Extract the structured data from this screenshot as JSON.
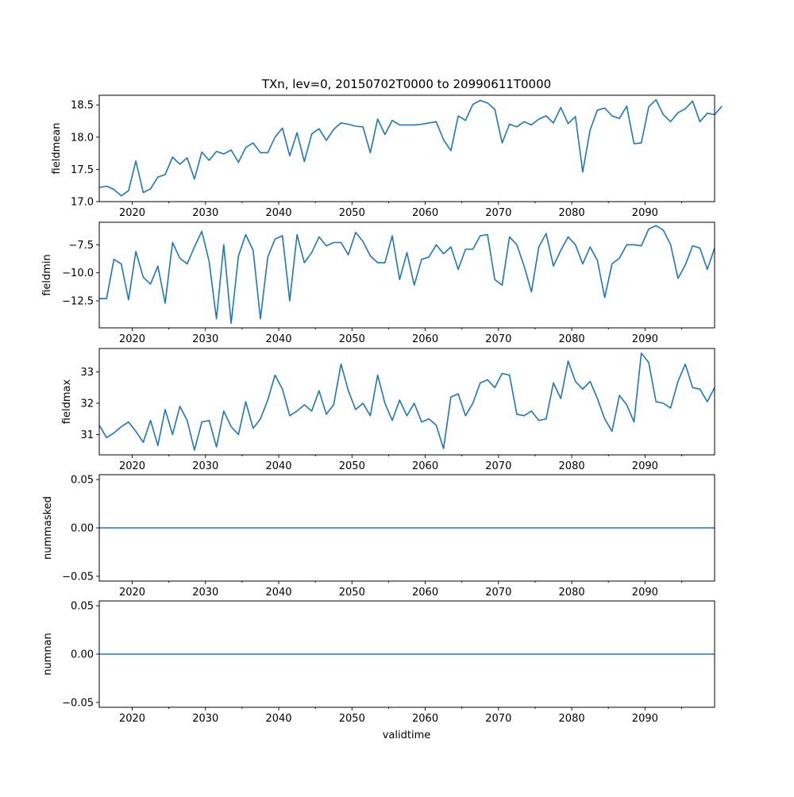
{
  "figure": {
    "title": "TXn, lev=0, 20150702T0000 to 20990611T0000",
    "xlabel": "validtime"
  },
  "chart_data": [
    {
      "type": "line",
      "ylabel": "fieldmean",
      "xlim": [
        2015.5,
        2099.5
      ],
      "ylim": [
        17.0,
        18.65
      ],
      "x_ticks": [
        2020,
        2030,
        2040,
        2050,
        2060,
        2070,
        2080,
        2090
      ],
      "x_tick_labels": [
        "2020",
        "2030",
        "2040",
        "2050",
        "2060",
        "2070",
        "2080",
        "2090"
      ],
      "y_ticks": [
        17.0,
        17.5,
        18.0,
        18.5
      ],
      "y_tick_labels": [
        "17.0",
        "17.5",
        "18.0",
        "18.5"
      ],
      "x_start": 2015.5,
      "values": [
        17.22,
        17.24,
        17.19,
        17.09,
        17.17,
        17.63,
        17.14,
        17.2,
        17.38,
        17.42,
        17.69,
        17.58,
        17.68,
        17.35,
        17.77,
        17.64,
        17.78,
        17.74,
        17.8,
        17.61,
        17.84,
        17.91,
        17.76,
        17.76,
        18.0,
        18.14,
        17.71,
        18.07,
        17.62,
        18.05,
        18.13,
        17.95,
        18.12,
        18.22,
        18.2,
        18.17,
        18.16,
        17.76,
        18.28,
        18.04,
        18.26,
        18.19,
        18.19,
        18.19,
        18.2,
        18.22,
        18.24,
        17.96,
        17.79,
        18.33,
        18.26,
        18.51,
        18.57,
        18.53,
        18.43,
        17.91,
        18.2,
        18.16,
        18.24,
        18.19,
        18.28,
        18.33,
        18.22,
        18.46,
        18.21,
        18.32,
        17.46,
        18.11,
        18.42,
        18.45,
        18.33,
        18.29,
        18.48,
        17.9,
        17.91,
        18.47,
        18.58,
        18.35,
        18.24,
        18.38,
        18.44,
        18.56,
        18.24,
        18.37,
        18.35,
        18.48
      ]
    },
    {
      "type": "line",
      "ylabel": "fieldmin",
      "xlim": [
        2015.5,
        2099.5
      ],
      "ylim": [
        -14.9,
        -5.5
      ],
      "x_ticks": [
        2020,
        2030,
        2040,
        2050,
        2060,
        2070,
        2080,
        2090
      ],
      "x_tick_labels": [
        "2020",
        "2030",
        "2040",
        "2050",
        "2060",
        "2070",
        "2080",
        "2090"
      ],
      "y_ticks": [
        -12.5,
        -10.0,
        -7.5
      ],
      "y_tick_labels": [
        "−12.5",
        "−10.0",
        "−7.5"
      ],
      "x_start": 2015.5,
      "values": [
        -12.3,
        -12.3,
        -8.8,
        -9.2,
        -12.4,
        -8.1,
        -10.4,
        -11.0,
        -9.4,
        -12.7,
        -7.3,
        -8.7,
        -9.2,
        -7.7,
        -6.3,
        -9.0,
        -14.1,
        -7.5,
        -14.5,
        -8.5,
        -6.6,
        -8.0,
        -14.1,
        -8.6,
        -7.0,
        -6.7,
        -12.5,
        -6.6,
        -9.1,
        -8.2,
        -6.8,
        -7.6,
        -7.3,
        -7.3,
        -8.4,
        -6.4,
        -7.2,
        -8.5,
        -9.1,
        -9.1,
        -6.7,
        -10.6,
        -8.2,
        -11.1,
        -8.8,
        -8.6,
        -7.5,
        -8.3,
        -7.7,
        -9.7,
        -7.9,
        -7.9,
        -6.7,
        -6.6,
        -10.6,
        -11.1,
        -6.8,
        -7.5,
        -9.4,
        -11.7,
        -7.7,
        -6.5,
        -9.4,
        -8.0,
        -6.8,
        -7.5,
        -9.2,
        -7.7,
        -8.9,
        -12.2,
        -9.2,
        -8.7,
        -7.5,
        -7.5,
        -7.6,
        -6.1,
        -5.8,
        -6.2,
        -7.5,
        -10.5,
        -9.3,
        -7.6,
        -7.8,
        -9.7,
        -7.8
      ]
    },
    {
      "type": "line",
      "ylabel": "fieldmax",
      "xlim": [
        2015.5,
        2099.5
      ],
      "ylim": [
        30.35,
        33.75
      ],
      "x_ticks": [
        2020,
        2030,
        2040,
        2050,
        2060,
        2070,
        2080,
        2090
      ],
      "x_tick_labels": [
        "2020",
        "2030",
        "2040",
        "2050",
        "2060",
        "2070",
        "2080",
        "2090"
      ],
      "y_ticks": [
        31,
        32,
        33
      ],
      "y_tick_labels": [
        "31",
        "32",
        "33"
      ],
      "x_start": 2015.5,
      "values": [
        31.3,
        30.9,
        31.05,
        31.25,
        31.4,
        31.1,
        30.75,
        31.45,
        30.65,
        31.8,
        31.0,
        31.9,
        31.45,
        30.5,
        31.4,
        31.45,
        30.6,
        31.75,
        31.25,
        31.0,
        32.05,
        31.2,
        31.5,
        32.1,
        32.9,
        32.45,
        31.6,
        31.75,
        31.95,
        31.75,
        32.4,
        31.65,
        31.95,
        33.25,
        32.4,
        31.8,
        32.0,
        31.6,
        32.9,
        32.0,
        31.45,
        32.1,
        31.6,
        32.0,
        31.4,
        31.5,
        31.3,
        30.55,
        32.2,
        32.3,
        31.6,
        32.0,
        32.65,
        32.75,
        32.5,
        32.95,
        32.9,
        31.65,
        31.6,
        31.75,
        31.45,
        31.5,
        32.65,
        32.15,
        33.35,
        32.7,
        32.45,
        32.7,
        32.15,
        31.5,
        31.1,
        32.25,
        31.95,
        31.4,
        33.6,
        33.3,
        32.05,
        32.0,
        31.85,
        32.7,
        33.25,
        32.5,
        32.45,
        32.05,
        32.5
      ]
    },
    {
      "type": "line",
      "ylabel": "nummasked",
      "xlim": [
        2015.5,
        2099.5
      ],
      "ylim": [
        -0.055,
        0.055
      ],
      "x_ticks": [
        2020,
        2030,
        2040,
        2050,
        2060,
        2070,
        2080,
        2090
      ],
      "x_tick_labels": [
        "2020",
        "2030",
        "2040",
        "2050",
        "2060",
        "2070",
        "2080",
        "2090"
      ],
      "y_ticks": [
        -0.05,
        0.0,
        0.05
      ],
      "y_tick_labels": [
        "−0.05",
        "0.00",
        "0.05"
      ],
      "x_start": 2015.5,
      "constant": 0.0
    },
    {
      "type": "line",
      "ylabel": "numnan",
      "xlim": [
        2015.5,
        2099.5
      ],
      "ylim": [
        -0.055,
        0.055
      ],
      "x_ticks": [
        2020,
        2030,
        2040,
        2050,
        2060,
        2070,
        2080,
        2090
      ],
      "x_tick_labels": [
        "2020",
        "2030",
        "2040",
        "2050",
        "2060",
        "2070",
        "2080",
        "2090"
      ],
      "y_ticks": [
        -0.05,
        0.0,
        0.05
      ],
      "y_tick_labels": [
        "−0.05",
        "0.00",
        "0.05"
      ],
      "x_start": 2015.5,
      "constant": 0.0
    }
  ]
}
